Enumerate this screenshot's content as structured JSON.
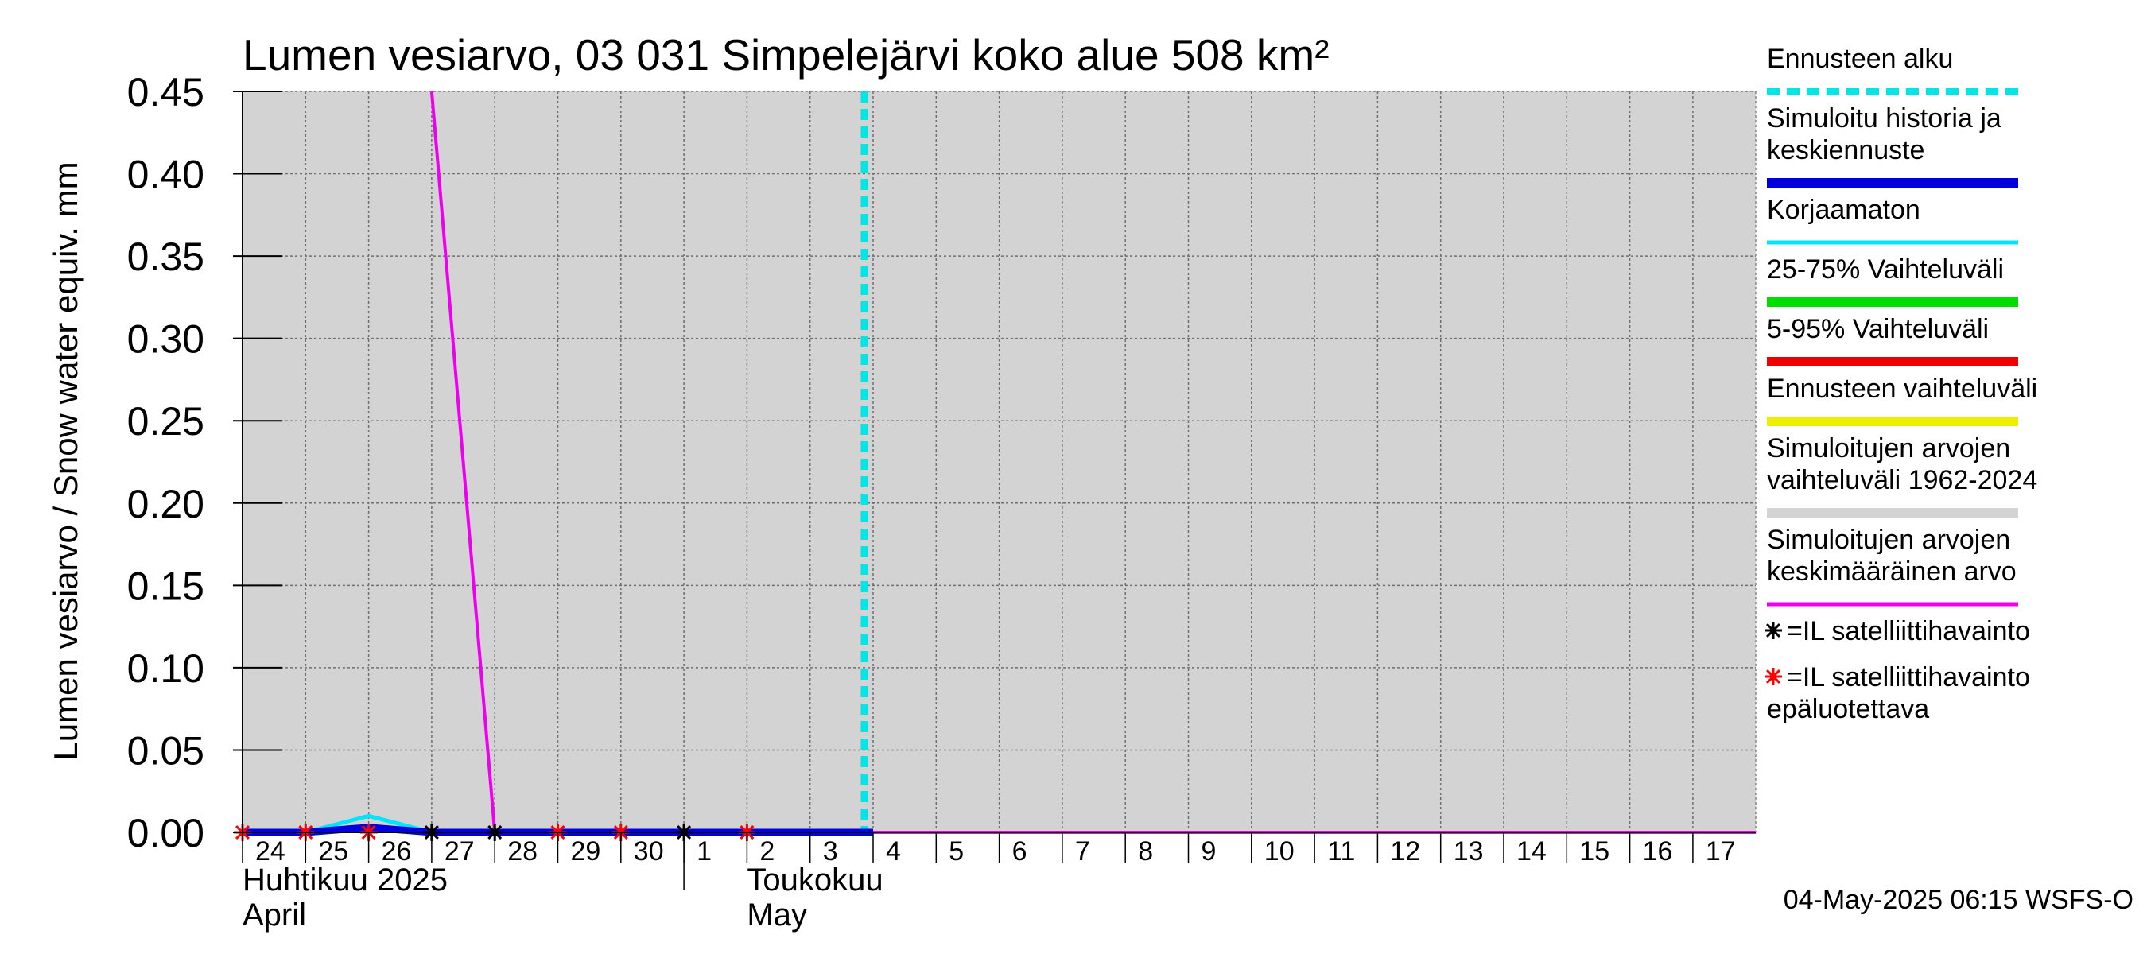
{
  "chart_data": {
    "type": "line",
    "title": "Lumen vesiarvo, 03 031 Simpelejärvi koko alue 508 km²",
    "ylabel": "Lumen vesiarvo / Snow water equiv.    mm",
    "ylim": [
      0,
      0.45
    ],
    "yticks": [
      "0.00",
      "0.05",
      "0.10",
      "0.15",
      "0.20",
      "0.25",
      "0.30",
      "0.35",
      "0.40",
      "0.45"
    ],
    "grid": true,
    "x_start": "2025-04-24",
    "x_end": "2025-05-18",
    "xtick_labels": [
      "24",
      "25",
      "26",
      "27",
      "28",
      "29",
      "30",
      "1",
      "2",
      "3",
      "4",
      "5",
      "6",
      "7",
      "8",
      "9",
      "10",
      "11",
      "12",
      "13",
      "14",
      "15",
      "16",
      "17"
    ],
    "month_labels": [
      {
        "name": "Huhtikuu  2025",
        "english": "April",
        "date": "2025-04-24"
      },
      {
        "name": "Toukokuu",
        "english": "May",
        "date": "2025-05-02"
      }
    ],
    "forecast_start": "2025-05-04",
    "colors": {
      "forecast_start": "#00e5e5",
      "simulated": "#0000dd",
      "uncorrected": "#00e5ff",
      "p25_75": "#00dd00",
      "p5_95": "#ee0000",
      "forecast_range": "#eeee00",
      "historical_range": "#d3d3d3",
      "historical_mean": "#ee00ee",
      "satellite": "#000000",
      "satellite_unreliable": "#ff0000"
    },
    "historical_range": {
      "x": [
        "2025-04-24",
        "2025-05-18"
      ],
      "upper": [
        0.45,
        0.45
      ],
      "lower": [
        0,
        0
      ]
    },
    "series": [
      {
        "name": "Simuloitujen arvojen keskimääräinen arvo",
        "key": "historical_mean",
        "x": [
          "2025-04-27",
          "2025-04-27",
          "2025-04-28",
          "2025-05-18"
        ],
        "y": [
          0.45,
          0.45,
          0,
          0
        ]
      },
      {
        "name": "Korjaamaton",
        "key": "uncorrected",
        "x": [
          "2025-04-24",
          "2025-04-25",
          "2025-04-26",
          "2025-04-27",
          "2025-04-28",
          "2025-05-04"
        ],
        "y": [
          0,
          0,
          0.01,
          0,
          0,
          0
        ]
      },
      {
        "name": "Simuloitu historia ja keskiennuste",
        "key": "simulated",
        "x": [
          "2025-04-24",
          "2025-04-25",
          "2025-04-26",
          "2025-04-27",
          "2025-04-28",
          "2025-05-04"
        ],
        "y": [
          0,
          0,
          0.003,
          0,
          0,
          0
        ]
      }
    ],
    "satellite_observations": [
      {
        "date": "2025-04-24",
        "value": 0,
        "reliable": false
      },
      {
        "date": "2025-04-25",
        "value": 0,
        "reliable": false
      },
      {
        "date": "2025-04-26",
        "value": 0,
        "reliable": false
      },
      {
        "date": "2025-04-27",
        "value": 0,
        "reliable": true
      },
      {
        "date": "2025-04-28",
        "value": 0,
        "reliable": true
      },
      {
        "date": "2025-04-29",
        "value": 0,
        "reliable": false
      },
      {
        "date": "2025-04-30",
        "value": 0,
        "reliable": false
      },
      {
        "date": "2025-05-01",
        "value": 0,
        "reliable": true
      },
      {
        "date": "2025-05-02",
        "value": 0,
        "reliable": false
      }
    ],
    "legend_position": "right",
    "legend": [
      {
        "lines": [
          "Ennusteen alku"
        ],
        "key": "forecast_start",
        "style": "dashed"
      },
      {
        "lines": [
          "Simuloitu historia ja",
          "keskiennuste"
        ],
        "key": "simulated",
        "style": "solid"
      },
      {
        "lines": [
          "Korjaamaton"
        ],
        "key": "uncorrected",
        "style": "thin"
      },
      {
        "lines": [
          "25-75% Vaihteluväli"
        ],
        "key": "p25_75",
        "style": "solid"
      },
      {
        "lines": [
          "5-95% Vaihteluväli"
        ],
        "key": "p5_95",
        "style": "solid"
      },
      {
        "lines": [
          "Ennusteen vaihteluväli"
        ],
        "key": "forecast_range",
        "style": "solid"
      },
      {
        "lines": [
          "Simuloitujen arvojen",
          "vaihteluväli 1962-2024"
        ],
        "key": "historical_range",
        "style": "solid"
      },
      {
        "lines": [
          "Simuloitujen arvojen",
          "keskimääräinen arvo"
        ],
        "key": "historical_mean",
        "style": "thin"
      },
      {
        "lines": [
          "=IL satelliittihavainto"
        ],
        "key": "satellite",
        "style": "star"
      },
      {
        "lines": [
          "=IL satelliittihavainto",
          "epäluotettava"
        ],
        "key": "satellite_unreliable",
        "style": "star"
      }
    ],
    "timestamp": "04-May-2025 06:15 WSFS-O"
  }
}
